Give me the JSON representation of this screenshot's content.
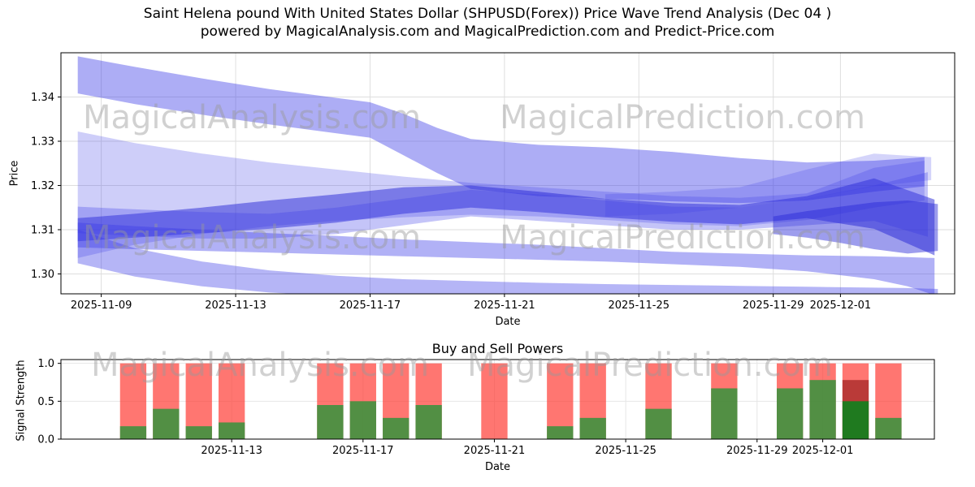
{
  "figure": {
    "title_line1": "Saint Helena pound With United States Dollar (SHPUSD(Forex)) Price Wave Trend Analysis (Dec 04 )",
    "title_line2": "powered by MagicalAnalysis.com and MagicalPrediction.com and Predict-Price.com",
    "watermarks": {
      "left": "MagicalAnalysis.com",
      "right": "MagicalPrediction.com"
    },
    "colors": {
      "band_blue": "#3c3ce8",
      "band_dark_blue": "#2626d6",
      "sell_red": "rgba(255,60,52,0.70)",
      "sell_dark_red": "rgba(130,10,10,0.55)",
      "buy_green": "rgba(52,148,60,0.85)",
      "buy_dark_green": "#1f7a1f",
      "grid": "#dedede",
      "watermark_gray": "#9a9a9a",
      "spine": "#000000"
    }
  },
  "chart_data": [
    {
      "id": "price_wave_trend",
      "type": "area",
      "ylabel": "Price",
      "xlabel": "Date",
      "x_unit": "days_since_2025-11-08",
      "xlim": [
        -0.2,
        26.4
      ],
      "ylim": [
        1.2955,
        1.35
      ],
      "grid": true,
      "yticks": [
        {
          "v": 1.3,
          "label": "1.30"
        },
        {
          "v": 1.31,
          "label": "1.31"
        },
        {
          "v": 1.32,
          "label": "1.32"
        },
        {
          "v": 1.33,
          "label": "1.33"
        },
        {
          "v": 1.34,
          "label": "1.34"
        }
      ],
      "xticks": [
        {
          "day": 1,
          "label": "2025-11-09"
        },
        {
          "day": 5,
          "label": "2025-11-13"
        },
        {
          "day": 9,
          "label": "2025-11-17"
        },
        {
          "day": 13,
          "label": "2025-11-21"
        },
        {
          "day": 17,
          "label": "2025-11-25"
        },
        {
          "day": 21,
          "label": "2025-11-29"
        },
        {
          "day": 23,
          "label": "2025-12-01"
        }
      ],
      "bands": [
        {
          "name": "upper-fan",
          "x": [
            0.3,
            2,
            4,
            6,
            8,
            9,
            10,
            11,
            12,
            14,
            16,
            18,
            20,
            22,
            24,
            25.5
          ],
          "hi": [
            1.3492,
            1.3468,
            1.3442,
            1.3418,
            1.3398,
            1.3388,
            1.3362,
            1.333,
            1.3305,
            1.3292,
            1.3286,
            1.3276,
            1.3262,
            1.3252,
            1.3256,
            1.3264
          ],
          "lo": [
            1.3408,
            1.3384,
            1.336,
            1.3338,
            1.3318,
            1.3308,
            1.3268,
            1.3228,
            1.3192,
            1.3176,
            1.317,
            1.3164,
            1.316,
            1.3166,
            1.3186,
            1.3198
          ],
          "opacity": 0.42
        },
        {
          "name": "left-wedge",
          "x": [
            0.3,
            2,
            4,
            6,
            8,
            10,
            12,
            14,
            16,
            18,
            20,
            22,
            24,
            25.5
          ],
          "hi": [
            1.3322,
            1.3296,
            1.3272,
            1.3252,
            1.3236,
            1.322,
            1.3206,
            1.3196,
            1.3186,
            1.3176,
            1.3172,
            1.3182,
            1.324,
            1.3256
          ],
          "lo": [
            1.3036,
            1.3066,
            1.309,
            1.3108,
            1.312,
            1.3128,
            1.3134,
            1.313,
            1.3122,
            1.3112,
            1.3108,
            1.3122,
            1.315,
            1.3166
          ],
          "opacity": 0.25
        },
        {
          "name": "dark-core",
          "x": [
            0.3,
            2,
            4,
            6,
            8,
            10,
            12,
            14,
            16,
            18,
            20,
            22,
            24,
            25.8
          ],
          "hi": [
            1.3126,
            1.3136,
            1.315,
            1.3166,
            1.318,
            1.3196,
            1.32,
            1.3186,
            1.317,
            1.316,
            1.3156,
            1.3176,
            1.3216,
            1.3168
          ],
          "lo": [
            1.3074,
            1.3082,
            1.3092,
            1.3102,
            1.3116,
            1.3136,
            1.315,
            1.314,
            1.3128,
            1.3118,
            1.3112,
            1.3126,
            1.3102,
            1.3042
          ],
          "opacity": 0.5,
          "dark": true
        },
        {
          "name": "mid-band",
          "x": [
            0.3,
            2,
            4,
            6,
            8,
            10,
            12,
            14,
            16,
            18,
            20,
            22,
            24,
            25.6
          ],
          "hi": [
            1.3152,
            1.3146,
            1.314,
            1.3136,
            1.315,
            1.317,
            1.319,
            1.318,
            1.3166,
            1.3152,
            1.315,
            1.317,
            1.32,
            1.323
          ],
          "lo": [
            1.3092,
            1.3086,
            1.308,
            1.308,
            1.309,
            1.311,
            1.313,
            1.312,
            1.311,
            1.31,
            1.31,
            1.311,
            1.312,
            1.3084
          ],
          "opacity": 0.3
        },
        {
          "name": "right-riser",
          "x": [
            16,
            18,
            20,
            22,
            24,
            25.7
          ],
          "hi": [
            1.318,
            1.3186,
            1.3196,
            1.3236,
            1.3272,
            1.3264
          ],
          "lo": [
            1.313,
            1.3136,
            1.315,
            1.317,
            1.3198,
            1.3212
          ],
          "opacity": 0.22
        },
        {
          "name": "right-blob",
          "x": [
            21,
            22,
            23,
            24,
            25,
            25.9
          ],
          "hi": [
            1.313,
            1.3142,
            1.3152,
            1.3162,
            1.3166,
            1.3158
          ],
          "lo": [
            1.309,
            1.3082,
            1.307,
            1.3056,
            1.3046,
            1.3052
          ],
          "opacity": 0.45,
          "dark": true
        },
        {
          "name": "decliner",
          "x": [
            0.3,
            2,
            4,
            6,
            8,
            10,
            12,
            14,
            16,
            18,
            20,
            22,
            24,
            25,
            25.8
          ],
          "hi": [
            1.3116,
            1.3108,
            1.31,
            1.3092,
            1.3086,
            1.3078,
            1.3072,
            1.3066,
            1.3058,
            1.305,
            1.3046,
            1.3042,
            1.304,
            1.3038,
            1.3036
          ],
          "lo": [
            1.306,
            1.3056,
            1.3052,
            1.3048,
            1.3044,
            1.304,
            1.3036,
            1.3032,
            1.3028,
            1.3022,
            1.3016,
            1.3006,
            1.2988,
            1.2972,
            1.2952
          ],
          "opacity": 0.4
        },
        {
          "name": "bottom-fan",
          "x": [
            0.3,
            2,
            4,
            6,
            8,
            10,
            12,
            14,
            16,
            18,
            20,
            22,
            24,
            25,
            25.9
          ],
          "hi": [
            1.31,
            1.3058,
            1.3028,
            1.3008,
            1.2996,
            1.2988,
            1.2984,
            1.298,
            1.2977,
            1.2975,
            1.2973,
            1.2971,
            1.2969,
            1.2968,
            1.2966
          ],
          "lo": [
            1.3024,
            1.2994,
            1.2972,
            1.2958,
            1.295,
            1.2945,
            1.2942,
            1.294,
            1.2938,
            1.2937,
            1.2936,
            1.2935,
            1.2935,
            1.2936,
            1.2942
          ],
          "opacity": 0.38
        }
      ]
    },
    {
      "id": "buy_sell_powers",
      "type": "bar",
      "title": "Buy and Sell Powers",
      "ylabel": "Signal Strength",
      "xlabel": "Date",
      "ylim": [
        0,
        1.05
      ],
      "yticks": [
        {
          "v": 0.0,
          "label": "0.0"
        },
        {
          "v": 0.5,
          "label": "0.5"
        },
        {
          "v": 1.0,
          "label": "1.0"
        }
      ],
      "xticks": [
        {
          "day": 5,
          "label": "2025-11-13"
        },
        {
          "day": 9,
          "label": "2025-11-17"
        },
        {
          "day": 13,
          "label": "2025-11-21"
        },
        {
          "day": 17,
          "label": "2025-11-25"
        },
        {
          "day": 21,
          "label": "2025-11-29"
        },
        {
          "day": 23,
          "label": "2025-12-01"
        }
      ],
      "bars": [
        {
          "date": "2025-11-10",
          "day": 2,
          "sell": 1.0,
          "buy": 0.17
        },
        {
          "date": "2025-11-11",
          "day": 3,
          "sell": 1.0,
          "buy": 0.4
        },
        {
          "date": "2025-11-12",
          "day": 4,
          "sell": 1.0,
          "buy": 0.17
        },
        {
          "date": "2025-11-13",
          "day": 5,
          "sell": 1.0,
          "buy": 0.22
        },
        {
          "date": "2025-11-16",
          "day": 8,
          "sell": 1.0,
          "buy": 0.45
        },
        {
          "date": "2025-11-17",
          "day": 9,
          "sell": 1.0,
          "buy": 0.5
        },
        {
          "date": "2025-11-18",
          "day": 10,
          "sell": 1.0,
          "buy": 0.28
        },
        {
          "date": "2025-11-19",
          "day": 11,
          "sell": 1.0,
          "buy": 0.45
        },
        {
          "date": "2025-11-21",
          "day": 13,
          "sell": 1.0,
          "buy": 0.0
        },
        {
          "date": "2025-11-23",
          "day": 15,
          "sell": 1.0,
          "buy": 0.17
        },
        {
          "date": "2025-11-24",
          "day": 16,
          "sell": 1.0,
          "buy": 0.28
        },
        {
          "date": "2025-11-26",
          "day": 18,
          "sell": 1.0,
          "buy": 0.4
        },
        {
          "date": "2025-11-28",
          "day": 20,
          "sell": 1.0,
          "buy": 0.67
        },
        {
          "date": "2025-11-30",
          "day": 22,
          "sell": 1.0,
          "buy": 0.67
        },
        {
          "date": "2025-12-01",
          "day": 23,
          "sell": 1.0,
          "buy": 0.78
        },
        {
          "date": "2025-12-02",
          "day": 24,
          "sell": 1.0,
          "buy": 0.5,
          "dark": true,
          "sell_overlay": 0.78
        },
        {
          "date": "2025-12-03",
          "day": 25,
          "sell": 1.0,
          "buy": 0.28
        }
      ]
    }
  ]
}
